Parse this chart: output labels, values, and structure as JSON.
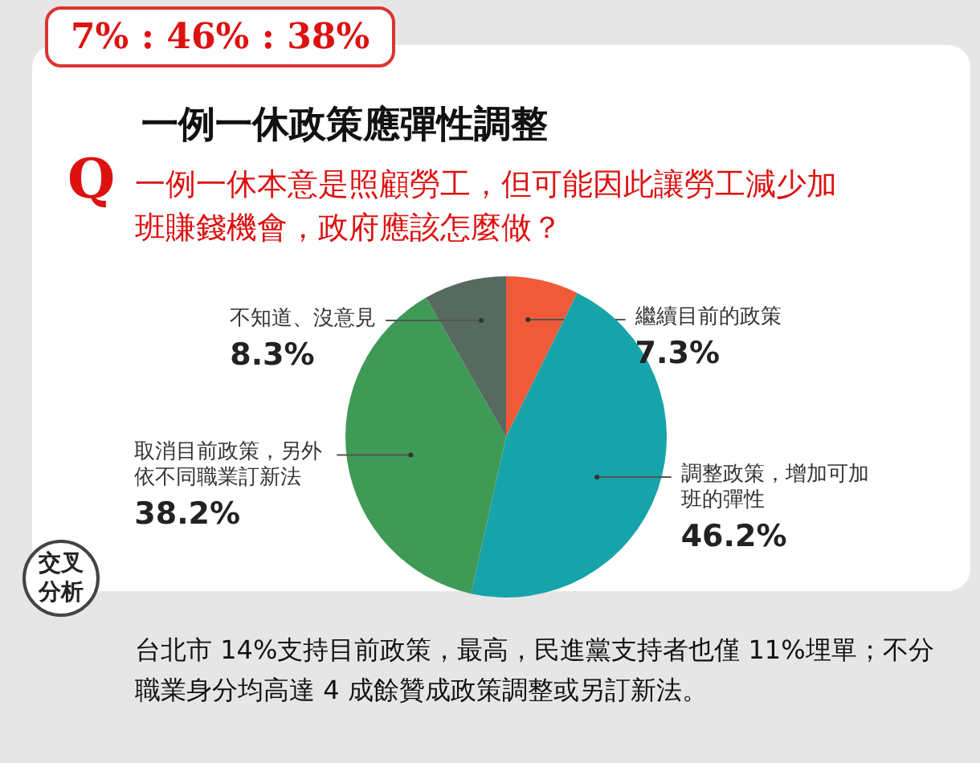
{
  "chart_data": {
    "type": "pie",
    "title": "一例一休政策應彈性調整",
    "subtitle": "一例一休本意是照顧勞工，但可能因此讓勞工減少加班賺錢機會，政府應該怎麼做？",
    "categories": [
      "繼續目前的政策",
      "調整政策，增加可加班的彈性",
      "取消目前政策，另外依不同職業訂新法",
      "不知道、沒意見"
    ],
    "values": [
      7.3,
      46.2,
      38.2,
      8.3
    ],
    "colors": [
      "#ef5b38",
      "#17a3aa",
      "#3f9a56",
      "#566a5f"
    ],
    "value_labels": [
      "7.3%",
      "46.2%",
      "38.2%",
      "8.3%"
    ],
    "annotations": [
      "7% : 46% : 38%",
      "Q",
      "交叉分析",
      "台北市 14%支持目前政策，最高，民進黨支持者也僅 11%埋單；不分職業身分均高達 4 成餘贊成政策調整或另訂新法。"
    ]
  }
}
